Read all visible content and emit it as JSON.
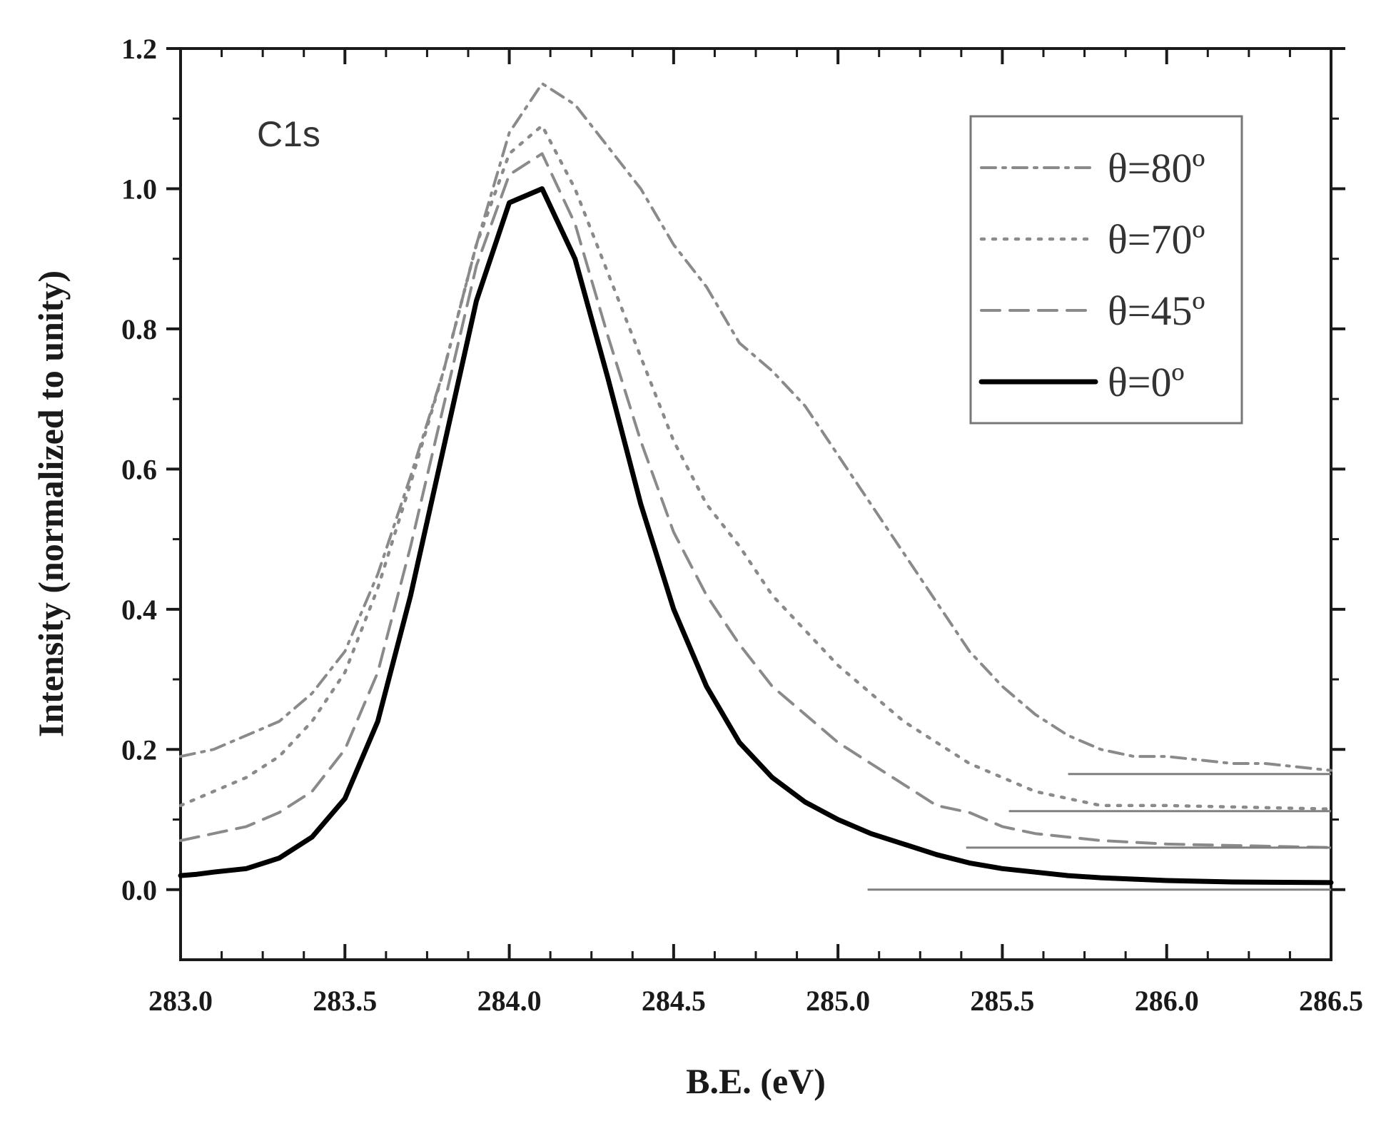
{
  "chart_data": {
    "type": "line",
    "annotation": "C1s",
    "xlabel": "B.E. (eV)",
    "ylabel": "Intensity (normalized to unity)",
    "xlim": [
      283.0,
      286.5
    ],
    "ylim": [
      -0.1,
      1.2
    ],
    "xticks": [
      283.0,
      283.5,
      284.0,
      284.5,
      285.0,
      285.5,
      286.0,
      286.5
    ],
    "xtick_labels": [
      "283.0",
      "283.5",
      "284.0",
      "284.5",
      "285.0",
      "285.5",
      "286.0",
      "286.5"
    ],
    "yticks": [
      0.0,
      0.2,
      0.4,
      0.6,
      0.8,
      1.0,
      1.2
    ],
    "ytick_labels": [
      "0.0",
      "0.2",
      "0.4",
      "0.6",
      "0.8",
      "1.0",
      "1.2"
    ],
    "legend_position": "top-right",
    "series": [
      {
        "name": "θ=80º",
        "style": "dash-dot",
        "color": "#8a8a8a",
        "baseline": 0.165,
        "baseline_start": 285.7,
        "points": [
          [
            283.0,
            0.19
          ],
          [
            283.1,
            0.2
          ],
          [
            283.2,
            0.22
          ],
          [
            283.3,
            0.24
          ],
          [
            283.4,
            0.28
          ],
          [
            283.5,
            0.34
          ],
          [
            283.6,
            0.45
          ],
          [
            283.7,
            0.59
          ],
          [
            283.8,
            0.74
          ],
          [
            283.9,
            0.92
          ],
          [
            284.0,
            1.08
          ],
          [
            284.1,
            1.15
          ],
          [
            284.2,
            1.12
          ],
          [
            284.3,
            1.06
          ],
          [
            284.4,
            1.0
          ],
          [
            284.5,
            0.92
          ],
          [
            284.6,
            0.86
          ],
          [
            284.7,
            0.78
          ],
          [
            284.8,
            0.74
          ],
          [
            284.9,
            0.69
          ],
          [
            285.0,
            0.62
          ],
          [
            285.1,
            0.55
          ],
          [
            285.2,
            0.48
          ],
          [
            285.3,
            0.41
          ],
          [
            285.4,
            0.34
          ],
          [
            285.5,
            0.29
          ],
          [
            285.6,
            0.25
          ],
          [
            285.7,
            0.22
          ],
          [
            285.8,
            0.2
          ],
          [
            285.9,
            0.19
          ],
          [
            286.0,
            0.19
          ],
          [
            286.2,
            0.18
          ],
          [
            286.3,
            0.18
          ],
          [
            286.5,
            0.17
          ]
        ]
      },
      {
        "name": "θ=70º",
        "style": "dotted",
        "color": "#8a8a8a",
        "baseline": 0.112,
        "baseline_start": 285.52,
        "points": [
          [
            283.0,
            0.12
          ],
          [
            283.1,
            0.14
          ],
          [
            283.2,
            0.16
          ],
          [
            283.3,
            0.19
          ],
          [
            283.4,
            0.24
          ],
          [
            283.5,
            0.31
          ],
          [
            283.6,
            0.43
          ],
          [
            283.7,
            0.58
          ],
          [
            283.8,
            0.74
          ],
          [
            283.9,
            0.92
          ],
          [
            284.0,
            1.05
          ],
          [
            284.1,
            1.09
          ],
          [
            284.2,
            1.0
          ],
          [
            284.3,
            0.88
          ],
          [
            284.4,
            0.76
          ],
          [
            284.5,
            0.64
          ],
          [
            284.6,
            0.55
          ],
          [
            284.7,
            0.49
          ],
          [
            284.8,
            0.42
          ],
          [
            284.9,
            0.37
          ],
          [
            285.0,
            0.32
          ],
          [
            285.1,
            0.28
          ],
          [
            285.2,
            0.24
          ],
          [
            285.3,
            0.21
          ],
          [
            285.4,
            0.18
          ],
          [
            285.5,
            0.16
          ],
          [
            285.6,
            0.14
          ],
          [
            285.7,
            0.13
          ],
          [
            285.8,
            0.12
          ],
          [
            286.0,
            0.12
          ],
          [
            286.5,
            0.115
          ]
        ]
      },
      {
        "name": "θ=45º",
        "style": "dashed",
        "color": "#8a8a8a",
        "baseline": 0.06,
        "baseline_start": 285.39,
        "points": [
          [
            283.0,
            0.07
          ],
          [
            283.1,
            0.08
          ],
          [
            283.2,
            0.09
          ],
          [
            283.3,
            0.11
          ],
          [
            283.4,
            0.14
          ],
          [
            283.5,
            0.2
          ],
          [
            283.6,
            0.31
          ],
          [
            283.7,
            0.49
          ],
          [
            283.8,
            0.69
          ],
          [
            283.9,
            0.89
          ],
          [
            284.0,
            1.02
          ],
          [
            284.1,
            1.05
          ],
          [
            284.2,
            0.95
          ],
          [
            284.3,
            0.79
          ],
          [
            284.4,
            0.64
          ],
          [
            284.5,
            0.51
          ],
          [
            284.6,
            0.42
          ],
          [
            284.7,
            0.35
          ],
          [
            284.8,
            0.29
          ],
          [
            284.9,
            0.25
          ],
          [
            285.0,
            0.21
          ],
          [
            285.1,
            0.18
          ],
          [
            285.2,
            0.15
          ],
          [
            285.3,
            0.12
          ],
          [
            285.4,
            0.11
          ],
          [
            285.5,
            0.09
          ],
          [
            285.6,
            0.08
          ],
          [
            285.7,
            0.075
          ],
          [
            285.8,
            0.07
          ],
          [
            286.0,
            0.065
          ],
          [
            286.5,
            0.06
          ]
        ]
      },
      {
        "name": "θ=0º",
        "style": "solid",
        "color": "#000000",
        "baseline": 0.0,
        "baseline_start": 285.09,
        "points": [
          [
            283.0,
            0.02
          ],
          [
            283.05,
            0.022
          ],
          [
            283.1,
            0.025
          ],
          [
            283.2,
            0.03
          ],
          [
            283.3,
            0.045
          ],
          [
            283.4,
            0.075
          ],
          [
            283.5,
            0.13
          ],
          [
            283.6,
            0.24
          ],
          [
            283.7,
            0.42
          ],
          [
            283.8,
            0.63
          ],
          [
            283.9,
            0.84
          ],
          [
            284.0,
            0.98
          ],
          [
            284.1,
            1.0
          ],
          [
            284.2,
            0.9
          ],
          [
            284.3,
            0.73
          ],
          [
            284.4,
            0.55
          ],
          [
            284.5,
            0.4
          ],
          [
            284.6,
            0.29
          ],
          [
            284.7,
            0.21
          ],
          [
            284.8,
            0.16
          ],
          [
            284.9,
            0.125
          ],
          [
            285.0,
            0.1
          ],
          [
            285.1,
            0.08
          ],
          [
            285.2,
            0.065
          ],
          [
            285.3,
            0.05
          ],
          [
            285.4,
            0.038
          ],
          [
            285.5,
            0.03
          ],
          [
            285.6,
            0.025
          ],
          [
            285.7,
            0.02
          ],
          [
            285.8,
            0.017
          ],
          [
            286.0,
            0.013
          ],
          [
            286.2,
            0.011
          ],
          [
            286.5,
            0.01
          ]
        ]
      }
    ]
  }
}
